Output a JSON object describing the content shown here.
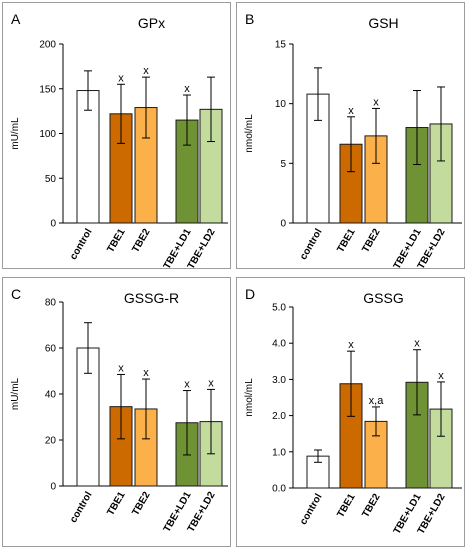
{
  "colors": {
    "control": "#ffffff",
    "TBE1": "#cc6a00",
    "TBE2": "#fbb04a",
    "TBE+LD1": "#6f9234",
    "TBE+LD2": "#c3dc9e",
    "bar_edge": "#1a1a1a",
    "panel_border": "#9c9c9c",
    "text": "#000000"
  },
  "chart_data": [
    {
      "type": "bar",
      "panel_letter": "A",
      "title": "GPx",
      "ylabel": "mU/mL",
      "ylim": [
        0,
        200
      ],
      "yticks": [
        "0",
        "50",
        "100",
        "150",
        "200"
      ],
      "categories": [
        "control",
        "TBE1",
        "TBE2",
        "TBE+LD1",
        "TBE+LD2"
      ],
      "values": [
        148,
        122,
        129,
        115,
        127
      ],
      "error": [
        22,
        33,
        34,
        28,
        36
      ],
      "annotations": [
        "",
        "x",
        "x",
        "x",
        ""
      ],
      "grid": false
    },
    {
      "type": "bar",
      "panel_letter": "B",
      "title": "GSH",
      "ylabel": "nmol/mL",
      "ylim": [
        0,
        15
      ],
      "yticks": [
        "0",
        "5",
        "10",
        "15"
      ],
      "categories": [
        "control",
        "TBE1",
        "TBE2",
        "TBE+LD1",
        "TBE+LD2"
      ],
      "values": [
        10.8,
        6.6,
        7.3,
        8.0,
        8.3
      ],
      "error": [
        2.2,
        2.3,
        2.3,
        3.1,
        3.1
      ],
      "annotations": [
        "",
        "x",
        "x",
        "",
        ""
      ],
      "grid": false
    },
    {
      "type": "bar",
      "panel_letter": "C",
      "title": "GSSG-R",
      "ylabel": "mU/mL",
      "ylim": [
        0,
        80
      ],
      "yticks": [
        "0",
        "20",
        "40",
        "60",
        "80"
      ],
      "categories": [
        "control",
        "TBE1",
        "TBE2",
        "TBE+LD1",
        "TBE+LD2"
      ],
      "values": [
        60,
        34.5,
        33.5,
        27.5,
        28
      ],
      "error": [
        11,
        14,
        13,
        14,
        14
      ],
      "annotations": [
        "",
        "x",
        "x",
        "x",
        "x"
      ],
      "grid": false
    },
    {
      "type": "bar",
      "panel_letter": "D",
      "title": "GSSG",
      "ylabel": "nmol/mL",
      "ylim": [
        0,
        5
      ],
      "yticks": [
        "0.0",
        "1.0",
        "2.0",
        "3.0",
        "4.0",
        "5.0"
      ],
      "categories": [
        "control",
        "TBE1",
        "TBE2",
        "TBE+LD1",
        "TBE+LD2"
      ],
      "values": [
        0.88,
        2.88,
        1.84,
        2.92,
        2.18
      ],
      "error": [
        0.17,
        0.9,
        0.4,
        0.9,
        0.75
      ],
      "annotations": [
        "",
        "x",
        "x,a",
        "x",
        "x"
      ],
      "grid": false
    }
  ]
}
